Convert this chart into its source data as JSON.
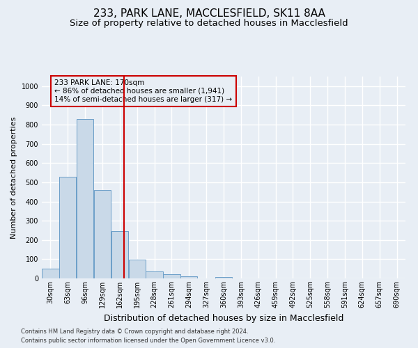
{
  "title1": "233, PARK LANE, MACCLESFIELD, SK11 8AA",
  "title2": "Size of property relative to detached houses in Macclesfield",
  "xlabel": "Distribution of detached houses by size in Macclesfield",
  "ylabel": "Number of detached properties",
  "footnote1": "Contains HM Land Registry data © Crown copyright and database right 2024.",
  "footnote2": "Contains public sector information licensed under the Open Government Licence v3.0.",
  "annotation_line1": "233 PARK LANE: 170sqm",
  "annotation_line2": "← 86% of detached houses are smaller (1,941)",
  "annotation_line3": "14% of semi-detached houses are larger (317) →",
  "subject_value": 170,
  "bar_color": "#c9d9e8",
  "bar_edge_color": "#6b9ec8",
  "vline_color": "#cc0000",
  "annotation_box_color": "#cc0000",
  "background_color": "#e8eef5",
  "categories": [
    "30sqm",
    "63sqm",
    "96sqm",
    "129sqm",
    "162sqm",
    "195sqm",
    "228sqm",
    "261sqm",
    "294sqm",
    "327sqm",
    "360sqm",
    "393sqm",
    "426sqm",
    "459sqm",
    "492sqm",
    "525sqm",
    "558sqm",
    "591sqm",
    "624sqm",
    "657sqm",
    "690sqm"
  ],
  "bin_left": [
    13.5,
    46.5,
    79.5,
    112.5,
    145.5,
    178.5,
    211.5,
    244.5,
    277.5,
    310.5,
    343.5,
    376.5,
    409.5,
    442.5,
    475.5,
    508.5,
    541.5,
    574.5,
    607.5,
    640.5,
    673.5
  ],
  "bin_width": 33,
  "values": [
    50,
    530,
    830,
    460,
    245,
    97,
    35,
    20,
    12,
    0,
    8,
    0,
    0,
    0,
    0,
    0,
    0,
    0,
    0,
    0,
    0
  ],
  "ylim": [
    0,
    1050
  ],
  "xlim_left": 13.5,
  "xlim_right": 706.5,
  "yticks": [
    0,
    100,
    200,
    300,
    400,
    500,
    600,
    700,
    800,
    900,
    1000
  ],
  "grid_color": "#ffffff",
  "title_fontsize": 11,
  "subtitle_fontsize": 9.5,
  "tick_fontsize": 7,
  "ylabel_fontsize": 8,
  "xlabel_fontsize": 9
}
